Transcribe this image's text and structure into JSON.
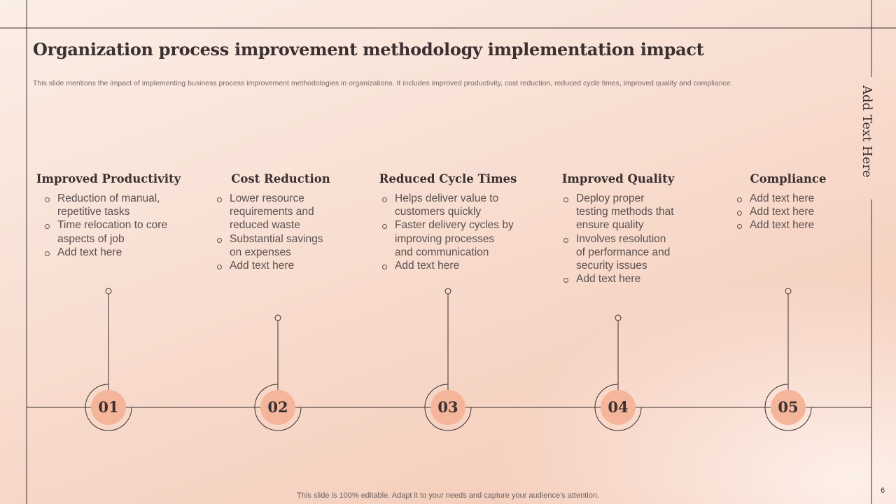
{
  "title": "Organization process improvement methodology implementation impact",
  "subtitle": "This slide mentions the impact of implementing business process improvement methodologies in organizations. It includes improved productivity, cost reduction, reduced cycle times, improved quality and compliance.",
  "side_text": "Add Text Here",
  "items": [
    {
      "number": "01",
      "heading": "Improved Productivity",
      "bullets": [
        "Reduction of manual, repetitive tasks",
        "Time relocation to core aspects of job",
        "Add text here"
      ]
    },
    {
      "number": "02",
      "heading": "Cost Reduction",
      "bullets": [
        "Lower resource requirements and reduced waste",
        "Substantial savings on expenses",
        "Add text here"
      ]
    },
    {
      "number": "03",
      "heading": "Reduced Cycle Times",
      "bullets": [
        "Helps deliver value to customers quickly",
        "Faster delivery cycles by improving processes and communication",
        "Add text here"
      ]
    },
    {
      "number": "04",
      "heading": "Improved Quality",
      "bullets": [
        "Deploy proper testing methods that ensure quality",
        "Involves resolution of performance and security issues",
        "Add text here"
      ]
    },
    {
      "number": "05",
      "heading": "Compliance",
      "bullets": [
        "Add text here",
        "Add text here",
        "Add text here"
      ]
    }
  ],
  "footer": "This slide is 100% editable. Adapt it to your needs and capture your audience's attention.",
  "page_number": "6"
}
